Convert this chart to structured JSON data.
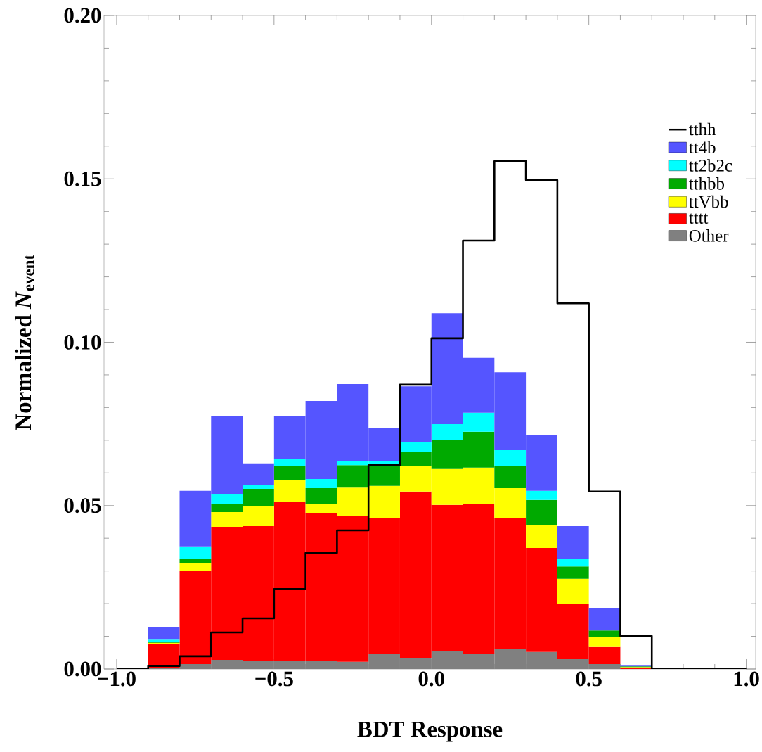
{
  "chart_data": {
    "type": "bar",
    "xlabel": "BDT Response",
    "ylabel": "Normalized *N*$_{event}$",
    "x": [
      -0.85,
      -0.75,
      -0.65,
      -0.55,
      -0.45,
      -0.35,
      -0.25,
      -0.15,
      -0.05,
      0.05,
      0.15,
      0.25,
      0.35,
      0.45,
      0.55,
      0.65
    ],
    "stacked": true,
    "series": [
      {
        "name": "Other",
        "color": "#808080",
        "values": [
          0.0003,
          0.0015,
          0.0028,
          0.0026,
          0.0024,
          0.0024,
          0.0022,
          0.0047,
          0.0032,
          0.0054,
          0.0047,
          0.0062,
          0.0052,
          0.003,
          0.0015,
          0.0
        ]
      },
      {
        "name": "tttt",
        "color": "#ff0000",
        "values": [
          0.0074,
          0.0286,
          0.0407,
          0.0411,
          0.0488,
          0.0454,
          0.0447,
          0.0414,
          0.0511,
          0.0448,
          0.0457,
          0.0399,
          0.0318,
          0.0168,
          0.0052,
          0.0003
        ]
      },
      {
        "name": "ttVbb",
        "color": "#ffff00",
        "values": [
          0.0003,
          0.0022,
          0.0045,
          0.0062,
          0.0065,
          0.0026,
          0.0086,
          0.0099,
          0.0077,
          0.0112,
          0.0112,
          0.0092,
          0.0071,
          0.0078,
          0.0032,
          0.0003
        ]
      },
      {
        "name": "tthbb",
        "color": "#00aa00",
        "values": [
          0.0002,
          0.0013,
          0.0026,
          0.0052,
          0.0043,
          0.0049,
          0.0069,
          0.0066,
          0.0045,
          0.0088,
          0.011,
          0.0069,
          0.0076,
          0.0038,
          0.0019,
          0.0002
        ]
      },
      {
        "name": "tt2b2c",
        "color": "#00ffff",
        "values": [
          0.0008,
          0.0039,
          0.003,
          0.0011,
          0.0022,
          0.0028,
          0.0011,
          0.0011,
          0.003,
          0.0047,
          0.0058,
          0.0048,
          0.0028,
          0.0022,
          0.0,
          0.0
        ]
      },
      {
        "name": "tt4b",
        "color": "#5555ff",
        "values": [
          0.0037,
          0.017,
          0.0237,
          0.0067,
          0.0133,
          0.0239,
          0.0237,
          0.0101,
          0.017,
          0.034,
          0.0168,
          0.0238,
          0.017,
          0.0101,
          0.0067,
          0.0002
        ]
      },
      {
        "name": "tthh",
        "color": "#000000",
        "type": "step",
        "x": [
          -1.0,
          -0.9,
          -0.8,
          -0.7,
          -0.6,
          -0.5,
          -0.4,
          -0.3,
          -0.2,
          -0.1,
          0.0,
          0.1,
          0.2,
          0.3,
          0.4,
          0.5,
          0.6,
          0.7,
          0.8,
          0.9,
          1.0
        ],
        "values": [
          0,
          0.0009,
          0.0039,
          0.0112,
          0.0155,
          0.0245,
          0.0355,
          0.0424,
          0.0624,
          0.087,
          0.1012,
          0.1311,
          0.1554,
          0.1496,
          0.1119,
          0.0543,
          0.0101,
          0,
          0,
          0,
          0
        ]
      }
    ],
    "xlim": [
      -1.04,
      1.03
    ],
    "ylim": [
      0,
      0.2
    ],
    "xticks": [
      {
        "value": -1.0,
        "label": "−1.0"
      },
      {
        "value": -0.5,
        "label": "−0.5"
      },
      {
        "value": 0.0,
        "label": "0.0"
      },
      {
        "value": 0.5,
        "label": "0.5"
      },
      {
        "value": 1.0,
        "label": "1.0"
      }
    ],
    "yticks": [
      {
        "value": 0.0,
        "label": "0.00"
      },
      {
        "value": 0.05,
        "label": "0.05"
      },
      {
        "value": 0.1,
        "label": "0.10"
      },
      {
        "value": 0.15,
        "label": "0.15"
      },
      {
        "value": 0.2,
        "label": "0.20"
      }
    ],
    "legend": "top right",
    "grid": false
  }
}
